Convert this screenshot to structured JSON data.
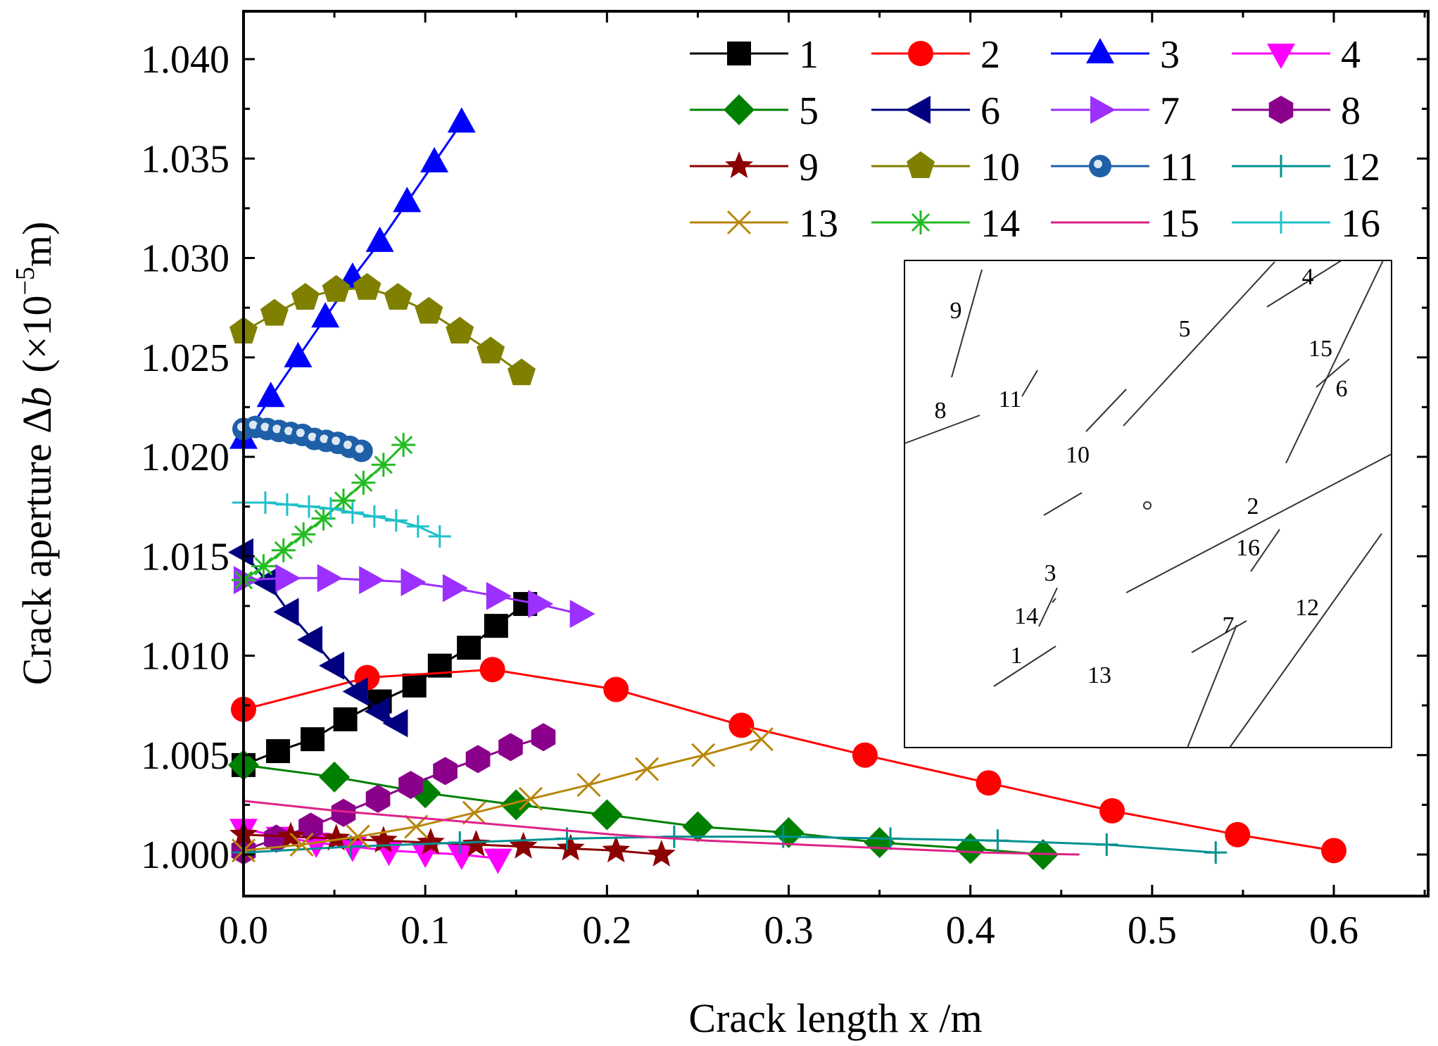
{
  "chart_data": {
    "type": "line",
    "title": "",
    "xlabel": "Crack length x /m",
    "ylabel": {
      "prefix": "Crack aperture Δ",
      "var": "b",
      "unit": "(×10",
      "exp": "−5",
      "unit_end": "m)"
    },
    "xlim": [
      0,
      0.65
    ],
    "ylim": [
      0.998,
      1.0425
    ],
    "xticks": [
      "0.0",
      "0.1",
      "0.2",
      "0.3",
      "0.4",
      "0.5",
      "0.6"
    ],
    "xtick_values": [
      0,
      0.1,
      0.2,
      0.3,
      0.4,
      0.5,
      0.6
    ],
    "yticks": [
      "1.000",
      "1.005",
      "1.010",
      "1.015",
      "1.020",
      "1.025",
      "1.030",
      "1.035",
      "1.040"
    ],
    "ytick_values": [
      1.0,
      1.005,
      1.01,
      1.015,
      1.02,
      1.025,
      1.03,
      1.035,
      1.04
    ],
    "legend_position": "top-right",
    "series": [
      {
        "name": "1",
        "color": "#000000",
        "marker": "square",
        "x": [
          0,
          0.019,
          0.038,
          0.056,
          0.075,
          0.094,
          0.108,
          0.124,
          0.139,
          0.155
        ],
        "y": [
          1.0045,
          1.0052,
          1.0058,
          1.0068,
          1.0077,
          1.0085,
          1.0095,
          1.0104,
          1.0115,
          1.0126
        ]
      },
      {
        "name": "2",
        "color": "#ff0000",
        "marker": "circle",
        "x": [
          0,
          0.068,
          0.137,
          0.205,
          0.274,
          0.342,
          0.41,
          0.478,
          0.547,
          0.6
        ],
        "y": [
          1.0073,
          1.0089,
          1.0093,
          1.0083,
          1.0065,
          1.005,
          1.0036,
          1.0022,
          1.001,
          1.0002
        ]
      },
      {
        "name": "3",
        "color": "#0000ff",
        "marker": "triangle-up",
        "x": [
          0,
          0.015,
          0.03,
          0.045,
          0.06,
          0.075,
          0.09,
          0.105,
          0.12
        ],
        "y": [
          1.0209,
          1.023,
          1.025,
          1.027,
          1.029,
          1.0308,
          1.0328,
          1.0348,
          1.0368
        ]
      },
      {
        "name": "4",
        "color": "#ff00ff",
        "marker": "triangle-down",
        "x": [
          0,
          0.02,
          0.04,
          0.06,
          0.08,
          0.1,
          0.12,
          0.14
        ],
        "y": [
          1.0013,
          1.0009,
          1.0006,
          1.0004,
          1.0002,
          1.0001,
          1.0,
          0.9998
        ]
      },
      {
        "name": "5",
        "color": "#008000",
        "marker": "diamond",
        "x": [
          0,
          0.05,
          0.1,
          0.15,
          0.2,
          0.25,
          0.3,
          0.35,
          0.4,
          0.44
        ],
        "y": [
          1.0045,
          1.0039,
          1.0031,
          1.0025,
          1.002,
          1.0014,
          1.0011,
          1.0006,
          1.0003,
          1.0
        ]
      },
      {
        "name": "6",
        "color": "#000080",
        "marker": "triangle-left",
        "x": [
          0,
          0.013,
          0.025,
          0.038,
          0.05,
          0.063,
          0.075,
          0.085
        ],
        "y": [
          1.0152,
          1.0137,
          1.0122,
          1.0108,
          1.0095,
          1.0082,
          1.0072,
          1.0066
        ]
      },
      {
        "name": "7",
        "color": "#9b30ff",
        "marker": "triangle-right",
        "x": [
          0,
          0.023,
          0.046,
          0.069,
          0.092,
          0.115,
          0.139,
          0.162,
          0.185
        ],
        "y": [
          1.0138,
          1.0139,
          1.0139,
          1.0138,
          1.0137,
          1.0134,
          1.013,
          1.0126,
          1.0121
        ]
      },
      {
        "name": "8",
        "color": "#8b008b",
        "marker": "hexagon",
        "x": [
          0,
          0.018,
          0.037,
          0.055,
          0.074,
          0.092,
          0.111,
          0.129,
          0.147,
          0.165
        ],
        "y": [
          1.0002,
          1.0008,
          1.0014,
          1.0021,
          1.0028,
          1.0035,
          1.0042,
          1.0048,
          1.0054,
          1.0059
        ]
      },
      {
        "name": "9",
        "color": "#8b0000",
        "marker": "star",
        "x": [
          0,
          0.026,
          0.051,
          0.077,
          0.103,
          0.128,
          0.154,
          0.18,
          0.205,
          0.23
        ],
        "y": [
          1.001,
          1.0009,
          1.0008,
          1.0007,
          1.0006,
          1.0005,
          1.0004,
          1.0003,
          1.0002,
          1.0
        ]
      },
      {
        "name": "10",
        "color": "#808000",
        "marker": "pentagon",
        "x": [
          0,
          0.017,
          0.034,
          0.051,
          0.068,
          0.085,
          0.102,
          0.119,
          0.136,
          0.153
        ],
        "y": [
          1.0263,
          1.0272,
          1.028,
          1.0284,
          1.0285,
          1.028,
          1.0273,
          1.0263,
          1.0253,
          1.0242
        ]
      },
      {
        "name": "11",
        "color": "#1f5fa8",
        "marker": "sphere",
        "x": [
          0,
          0.0065,
          0.013,
          0.0195,
          0.026,
          0.0325,
          0.039,
          0.0455,
          0.052,
          0.0585,
          0.065
        ],
        "y": [
          1.0214,
          1.0215,
          1.0214,
          1.0213,
          1.0212,
          1.0211,
          1.0209,
          1.0208,
          1.0207,
          1.0205,
          1.0203
        ]
      },
      {
        "name": "12",
        "color": "#009090",
        "marker": "plus",
        "x": [
          0,
          0.059,
          0.119,
          0.178,
          0.237,
          0.297,
          0.356,
          0.415,
          0.475,
          0.535
        ],
        "y": [
          1.0001,
          1.0004,
          1.0006,
          1.0008,
          1.0009,
          1.0009,
          1.0008,
          1.0007,
          1.0005,
          1.0001
        ]
      },
      {
        "name": "13",
        "color": "#b8860b",
        "marker": "x",
        "x": [
          0,
          0.032,
          0.063,
          0.095,
          0.127,
          0.158,
          0.19,
          0.222,
          0.253,
          0.285
        ],
        "y": [
          1.0002,
          1.0005,
          1.0009,
          1.0014,
          1.0021,
          1.0028,
          1.0035,
          1.0043,
          1.005,
          1.0058
        ]
      },
      {
        "name": "14",
        "color": "#22bb22",
        "marker": "asterisk",
        "x": [
          0,
          0.011,
          0.022,
          0.033,
          0.044,
          0.055,
          0.066,
          0.077,
          0.088
        ],
        "y": [
          1.0138,
          1.0145,
          1.0153,
          1.0161,
          1.0169,
          1.0178,
          1.0187,
          1.0196,
          1.0206
        ]
      },
      {
        "name": "15",
        "color": "#dd2288",
        "marker": "none",
        "x": [
          0,
          0.051,
          0.102,
          0.153,
          0.204,
          0.255,
          0.306,
          0.357,
          0.408,
          0.46
        ],
        "y": [
          1.0027,
          1.0022,
          1.0018,
          1.0014,
          1.001,
          1.0007,
          1.0005,
          1.0003,
          1.0001,
          1.0
        ]
      },
      {
        "name": "16",
        "color": "#20c0c8",
        "marker": "plus",
        "x": [
          0,
          0.012,
          0.024,
          0.036,
          0.048,
          0.06,
          0.072,
          0.084,
          0.096,
          0.108
        ],
        "y": [
          1.0177,
          1.0177,
          1.0176,
          1.0175,
          1.0174,
          1.0172,
          1.017,
          1.0168,
          1.0165,
          1.016
        ]
      }
    ],
    "inset": {
      "type": "crack-network-sketch",
      "labels": [
        "1",
        "2",
        "3",
        "4",
        "5",
        "6",
        "7",
        "8",
        "9",
        "10",
        "11",
        "12",
        "13",
        "14",
        "15",
        "16"
      ]
    }
  }
}
